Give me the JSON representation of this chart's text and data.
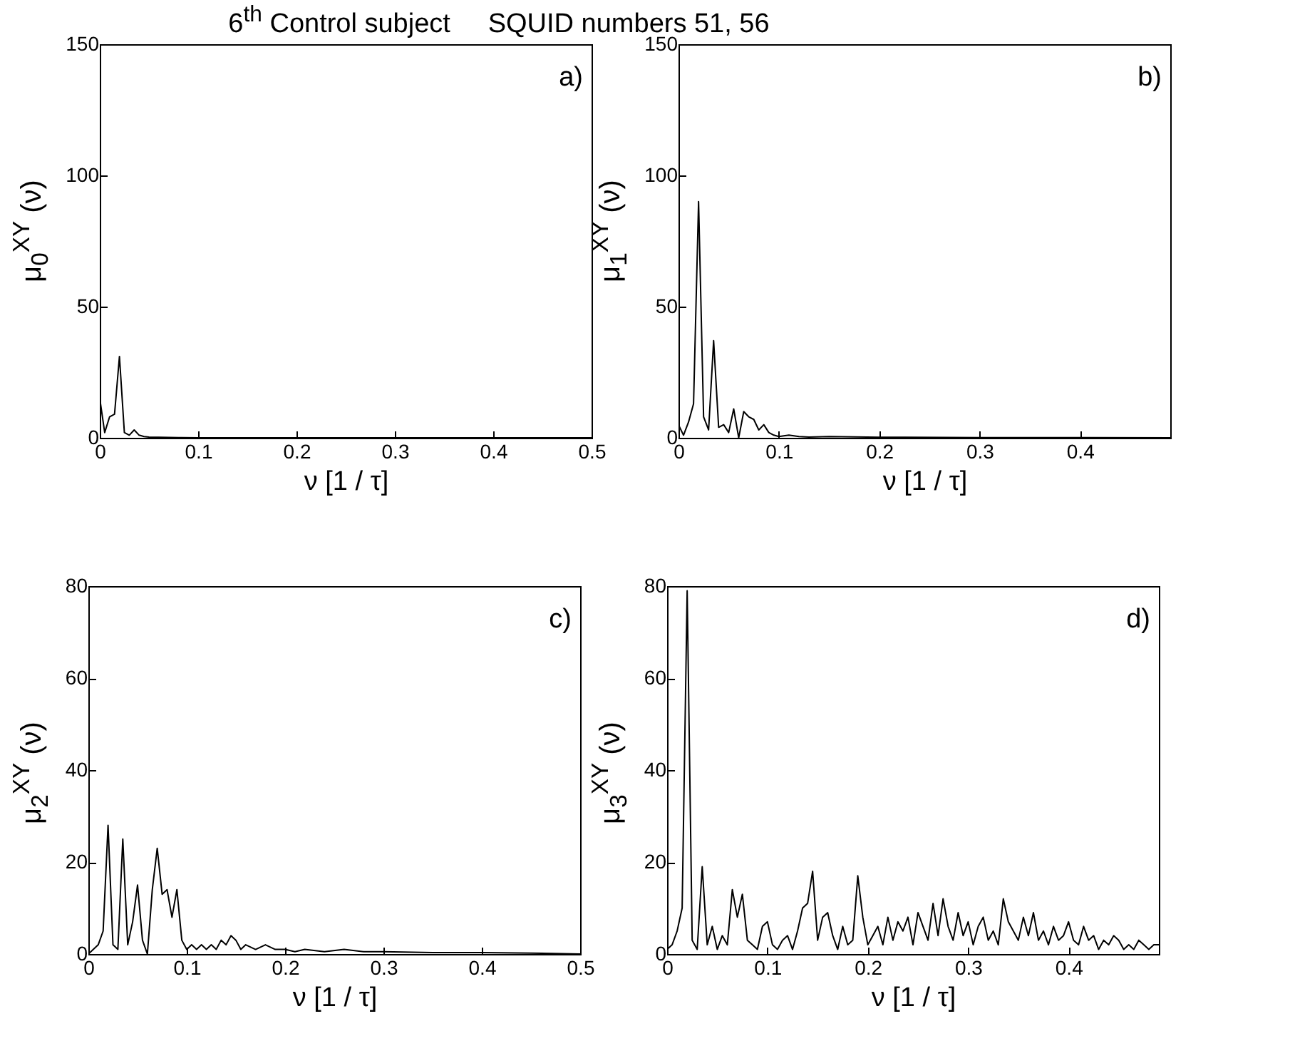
{
  "chart_data": [
    {
      "type": "line",
      "title": "6$^{th}$ Control subject     SQUID numbers 51, 56",
      "xlabel": "ν [1 / τ]",
      "ylabel": "μ$_{0}$$^{XY}$ (ν)",
      "annotations": [
        "a)"
      ],
      "color": "#000000",
      "x": [
        0,
        0.005,
        0.01,
        0.015,
        0.02,
        0.025,
        0.03,
        0.035,
        0.04,
        0.045,
        0.05,
        0.06,
        0.08,
        0.1,
        0.2,
        0.3,
        0.4,
        0.5
      ],
      "values": [
        15,
        2,
        8,
        9,
        31,
        2,
        1,
        3,
        1,
        0.5,
        0.3,
        0.2,
        0.1,
        0,
        0,
        0,
        0,
        0
      ],
      "xlim": [
        0,
        0.5
      ],
      "xticks": [
        0,
        0.1,
        0.2,
        0.3,
        0.4,
        0.5
      ],
      "ylim": [
        0,
        150
      ],
      "yticks": [
        0,
        50,
        100,
        150
      ]
    },
    {
      "type": "line",
      "xlabel": "ν [1 / τ]",
      "ylabel": "μ$_{1}$$^{XY}$ (ν)",
      "annotations": [
        "b)"
      ],
      "color": "#000000",
      "x": [
        0,
        0.005,
        0.01,
        0.015,
        0.02,
        0.025,
        0.03,
        0.035,
        0.04,
        0.045,
        0.05,
        0.055,
        0.06,
        0.065,
        0.07,
        0.075,
        0.08,
        0.085,
        0.09,
        0.095,
        0.1,
        0.11,
        0.12,
        0.13,
        0.15,
        0.2,
        0.3,
        0.4,
        0.49
      ],
      "values": [
        5,
        1,
        6,
        13,
        90,
        8,
        3,
        37,
        4,
        5,
        2,
        11,
        0,
        10,
        8,
        7,
        3,
        5,
        2,
        1,
        0.5,
        1,
        0.5,
        0.3,
        0.5,
        0.2,
        0.1,
        0.1,
        0
      ],
      "xlim": [
        0,
        0.49
      ],
      "xticks": [
        0,
        0.1,
        0.2,
        0.3,
        0.4
      ],
      "ylim": [
        0,
        150
      ],
      "yticks": [
        0,
        50,
        100,
        150
      ]
    },
    {
      "type": "line",
      "xlabel": "ν [1 / τ]",
      "ylabel": "μ$_{2}$$^{XY}$ (ν)",
      "annotations": [
        "c)"
      ],
      "color": "#000000",
      "x": [
        0,
        0.005,
        0.01,
        0.015,
        0.02,
        0.025,
        0.03,
        0.035,
        0.04,
        0.045,
        0.05,
        0.055,
        0.06,
        0.065,
        0.07,
        0.075,
        0.08,
        0.085,
        0.09,
        0.095,
        0.1,
        0.105,
        0.11,
        0.115,
        0.12,
        0.125,
        0.13,
        0.135,
        0.14,
        0.145,
        0.15,
        0.155,
        0.16,
        0.17,
        0.18,
        0.19,
        0.2,
        0.21,
        0.22,
        0.24,
        0.26,
        0.28,
        0.3,
        0.35,
        0.4,
        0.45,
        0.5
      ],
      "values": [
        0,
        1,
        2,
        5,
        28,
        2,
        1,
        25,
        2,
        7,
        15,
        3,
        0,
        14,
        23,
        13,
        14,
        8,
        14,
        3,
        1,
        2,
        1,
        2,
        1,
        2,
        1,
        3,
        2,
        4,
        3,
        1,
        2,
        1,
        2,
        1,
        1,
        0.5,
        1,
        0.5,
        1,
        0.5,
        0.5,
        0.3,
        0.3,
        0.2,
        0
      ],
      "xlim": [
        0,
        0.5
      ],
      "xticks": [
        0,
        0.1,
        0.2,
        0.3,
        0.4,
        0.5
      ],
      "ylim": [
        0,
        80
      ],
      "yticks": [
        0,
        20,
        40,
        60,
        80
      ]
    },
    {
      "type": "line",
      "xlabel": "ν [1 / τ]",
      "ylabel": "μ$_{3}$$^{XY}$ (ν)",
      "annotations": [
        "d)"
      ],
      "color": "#000000",
      "x": [
        0,
        0.005,
        0.01,
        0.015,
        0.02,
        0.025,
        0.03,
        0.035,
        0.04,
        0.045,
        0.05,
        0.055,
        0.06,
        0.065,
        0.07,
        0.075,
        0.08,
        0.085,
        0.09,
        0.095,
        0.1,
        0.105,
        0.11,
        0.115,
        0.12,
        0.125,
        0.13,
        0.135,
        0.14,
        0.145,
        0.15,
        0.155,
        0.16,
        0.165,
        0.17,
        0.175,
        0.18,
        0.185,
        0.19,
        0.195,
        0.2,
        0.205,
        0.21,
        0.215,
        0.22,
        0.225,
        0.23,
        0.235,
        0.24,
        0.245,
        0.25,
        0.255,
        0.26,
        0.265,
        0.27,
        0.275,
        0.28,
        0.285,
        0.29,
        0.295,
        0.3,
        0.305,
        0.31,
        0.315,
        0.32,
        0.325,
        0.33,
        0.335,
        0.34,
        0.345,
        0.35,
        0.355,
        0.36,
        0.365,
        0.37,
        0.375,
        0.38,
        0.385,
        0.39,
        0.395,
        0.4,
        0.405,
        0.41,
        0.415,
        0.42,
        0.425,
        0.43,
        0.435,
        0.44,
        0.445,
        0.45,
        0.455,
        0.46,
        0.465,
        0.47,
        0.475,
        0.48,
        0.485,
        0.49
      ],
      "values": [
        1,
        2,
        5,
        10,
        79,
        3,
        1,
        19,
        2,
        6,
        1,
        4,
        2,
        14,
        8,
        13,
        3,
        2,
        1,
        6,
        7,
        2,
        1,
        3,
        4,
        1,
        5,
        10,
        11,
        18,
        3,
        8,
        9,
        4,
        1,
        6,
        2,
        3,
        17,
        8,
        2,
        4,
        6,
        2,
        8,
        3,
        7,
        5,
        8,
        2,
        9,
        6,
        3,
        11,
        4,
        12,
        6,
        3,
        9,
        4,
        7,
        2,
        6,
        8,
        3,
        5,
        2,
        12,
        7,
        5,
        3,
        8,
        4,
        9,
        3,
        5,
        2,
        6,
        3,
        4,
        7,
        3,
        2,
        6,
        3,
        4,
        1,
        3,
        2,
        4,
        3,
        1,
        2,
        1,
        3,
        2,
        1,
        2,
        2
      ],
      "xlim": [
        0,
        0.49
      ],
      "xticks": [
        0,
        0.1,
        0.2,
        0.3,
        0.4
      ],
      "ylim": [
        0,
        80
      ],
      "yticks": [
        0,
        20,
        40,
        60,
        80
      ]
    }
  ]
}
